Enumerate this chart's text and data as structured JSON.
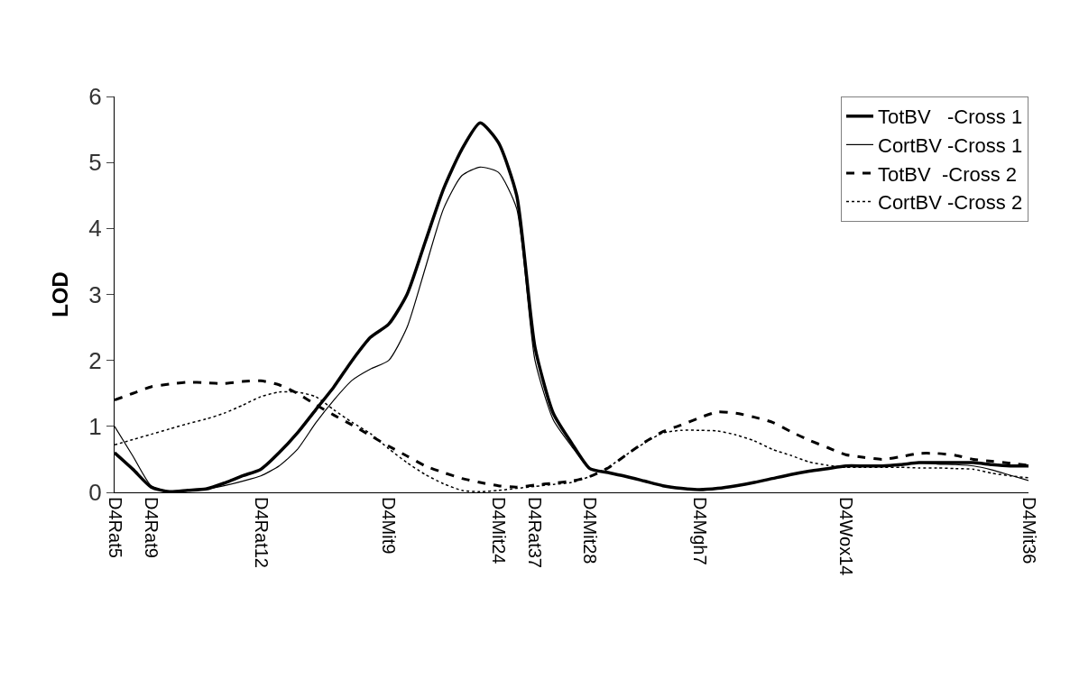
{
  "chart_data": {
    "type": "line",
    "ylabel": "LOD",
    "categories": [
      "D4Rat5",
      null,
      "D4Rat9",
      null,
      null,
      null,
      null,
      null,
      "D4Rat12",
      null,
      null,
      null,
      null,
      null,
      null,
      "D4Mit9",
      null,
      null,
      null,
      null,
      null,
      "D4Mit24",
      null,
      "D4Rat37",
      null,
      null,
      "D4Mit28",
      null,
      null,
      null,
      null,
      null,
      "D4Mgh7",
      null,
      null,
      null,
      null,
      null,
      null,
      null,
      "D4Wox14",
      null,
      null,
      null,
      null,
      null,
      null,
      null,
      null,
      null,
      "D4Mit36"
    ],
    "ylim": [
      0,
      6
    ],
    "yticks": [
      0,
      1,
      2,
      3,
      4,
      5,
      6
    ],
    "legend": "top right",
    "marker": "none",
    "series": [
      {
        "name": "TotBV   -Cross 1",
        "color": "#000000",
        "line_style": "solid",
        "values": [
          0.6,
          0.35,
          0.08,
          0.01,
          0.03,
          0.05,
          0.14,
          0.25,
          0.35,
          0.6,
          0.9,
          1.25,
          1.6,
          2.0,
          2.35,
          2.55,
          3.0,
          3.8,
          4.6,
          5.2,
          5.6,
          5.3,
          4.5,
          2.2,
          1.2,
          0.75,
          0.36,
          0.3,
          0.24,
          0.17,
          0.1,
          0.06,
          0.04,
          0.06,
          0.1,
          0.15,
          0.21,
          0.27,
          0.32,
          0.36,
          0.4,
          0.4,
          0.4,
          0.42,
          0.45,
          0.45,
          0.45,
          0.45,
          0.42,
          0.4,
          0.4
        ]
      },
      {
        "name": "CortBV -Cross 1",
        "color": "#000000",
        "line_style": "solid",
        "values": [
          1.0,
          0.55,
          0.1,
          0.01,
          0.03,
          0.05,
          0.1,
          0.17,
          0.25,
          0.4,
          0.65,
          1.05,
          1.4,
          1.7,
          1.87,
          2.0,
          2.5,
          3.4,
          4.3,
          4.8,
          4.93,
          4.85,
          4.3,
          2.0,
          1.1,
          0.7,
          0.36,
          0.3,
          0.24,
          0.17,
          0.1,
          0.06,
          0.04,
          0.06,
          0.1,
          0.15,
          0.21,
          0.27,
          0.32,
          0.36,
          0.4,
          0.4,
          0.4,
          0.42,
          0.45,
          0.43,
          0.42,
          0.4,
          0.34,
          0.26,
          0.18
        ]
      },
      {
        "name": "TotBV  -Cross 2",
        "color": "#000000",
        "line_style": "dashed",
        "values": [
          1.4,
          1.5,
          1.6,
          1.64,
          1.67,
          1.66,
          1.65,
          1.68,
          1.69,
          1.63,
          1.5,
          1.33,
          1.17,
          1.02,
          0.86,
          0.7,
          0.55,
          0.4,
          0.3,
          0.21,
          0.15,
          0.1,
          0.08,
          0.11,
          0.14,
          0.17,
          0.24,
          0.37,
          0.57,
          0.76,
          0.92,
          1.02,
          1.13,
          1.22,
          1.2,
          1.14,
          1.06,
          0.92,
          0.79,
          0.68,
          0.57,
          0.53,
          0.5,
          0.54,
          0.59,
          0.59,
          0.56,
          0.5,
          0.47,
          0.44,
          0.41
        ]
      },
      {
        "name": "CortBV -Cross 2",
        "color": "#000000",
        "line_style": "dotted",
        "values": [
          0.72,
          0.8,
          0.88,
          0.96,
          1.04,
          1.11,
          1.2,
          1.32,
          1.45,
          1.52,
          1.52,
          1.45,
          1.25,
          1.06,
          0.89,
          0.66,
          0.45,
          0.27,
          0.13,
          0.03,
          0.01,
          0.03,
          0.06,
          0.09,
          0.12,
          0.15,
          0.24,
          0.38,
          0.57,
          0.75,
          0.9,
          0.94,
          0.94,
          0.93,
          0.87,
          0.78,
          0.65,
          0.56,
          0.46,
          0.41,
          0.38,
          0.38,
          0.38,
          0.38,
          0.37,
          0.37,
          0.36,
          0.35,
          0.29,
          0.25,
          0.22
        ]
      }
    ]
  }
}
